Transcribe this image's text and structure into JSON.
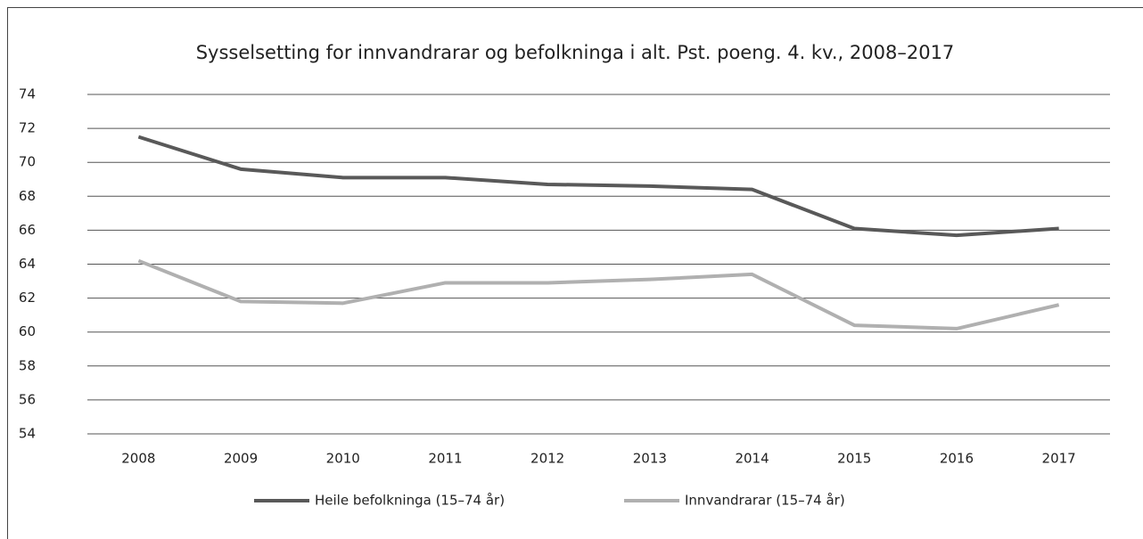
{
  "chart_data": {
    "type": "line",
    "title": "Sysselsetting for innvandrarar og befolkninga i alt. Pst. poeng. 4. kv., 2008–2017",
    "categories": [
      "2008",
      "2009",
      "2010",
      "2011",
      "2012",
      "2013",
      "2014",
      "2015",
      "2016",
      "2017"
    ],
    "series": [
      {
        "name": "Heile befolkninga (15–74 år)",
        "color": "#595959",
        "values": [
          71.5,
          69.6,
          69.1,
          69.1,
          68.7,
          68.6,
          68.4,
          66.1,
          65.7,
          66.1
        ]
      },
      {
        "name": "Innvandrarar (15–74 år)",
        "color": "#b0b0b0",
        "values": [
          64.2,
          61.8,
          61.7,
          62.9,
          62.9,
          63.1,
          63.4,
          60.4,
          60.2,
          61.6
        ]
      }
    ],
    "ylim": [
      54,
      74
    ],
    "yticks": [
      54,
      56,
      58,
      60,
      62,
      64,
      66,
      68,
      70,
      72,
      74
    ],
    "grid": true,
    "legend": "bottom"
  }
}
